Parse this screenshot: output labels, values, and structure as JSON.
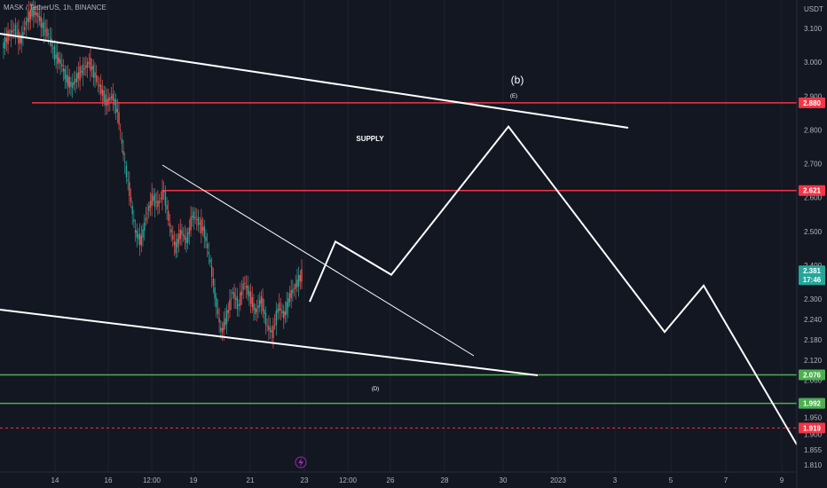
{
  "header": {
    "symbol_title": "MASK / TetherUS, 1h, BINANCE",
    "currency": "USDT"
  },
  "colors": {
    "background": "#131722",
    "candle_up": "#26a69a",
    "candle_down": "#ef5350",
    "resistance": "#f23645",
    "support": "#4caf50",
    "drawing": "#ffffff",
    "last_price": "#26a69a"
  },
  "annotations": {
    "wave_b": "(b)",
    "wave_e": "(E)",
    "wave_d": "(D)",
    "supply": "SUPPLY"
  },
  "chart_data": {
    "type": "candlestick",
    "ylim": [
      1.81,
      3.22
    ],
    "y_ticks": [
      "3.100",
      "3.000",
      "2.900",
      "2.800",
      "2.700",
      "2.600",
      "2.500",
      "2.400",
      "2.300",
      "2.240",
      "2.180",
      "2.120",
      "2.060",
      "2.000",
      "1.950",
      "1.900",
      "1.855",
      "1.810"
    ],
    "x_ticks": [
      "14",
      "16",
      "12:00",
      "19",
      "21",
      "23",
      "12:00",
      "26",
      "28",
      "30",
      "2023",
      "3",
      "5",
      "7",
      "9"
    ],
    "price_tags": [
      {
        "label": "2.880",
        "value": 2.88,
        "kind": "resistance"
      },
      {
        "label": "2.621",
        "value": 2.621,
        "kind": "resistance"
      },
      {
        "label": "2.381",
        "value": 2.381,
        "kind": "last",
        "sub": "17:46"
      },
      {
        "label": "2.076",
        "value": 2.076,
        "kind": "support"
      },
      {
        "label": "1.992",
        "value": 1.992,
        "kind": "support"
      },
      {
        "label": "1.919",
        "value": 1.919,
        "kind": "resistance"
      }
    ],
    "horizontal_levels": [
      2.88,
      2.621,
      2.076,
      1.992
    ],
    "dashed_level": 1.919,
    "projected_path": [
      2.292,
      2.47,
      2.372,
      2.81,
      2.203,
      2.34,
      1.87
    ],
    "price_path": [
      3.05,
      3.08,
      3.1,
      3.06,
      3.12,
      3.15,
      3.14,
      3.1,
      3.08,
      3.02,
      3.0,
      2.95,
      2.93,
      2.96,
      2.98,
      3.0,
      2.96,
      2.92,
      2.88,
      2.9,
      2.85,
      2.72,
      2.62,
      2.5,
      2.47,
      2.55,
      2.6,
      2.58,
      2.62,
      2.52,
      2.45,
      2.5,
      2.47,
      2.55,
      2.53,
      2.5,
      2.42,
      2.3,
      2.2,
      2.25,
      2.32,
      2.28,
      2.35,
      2.31,
      2.26,
      2.3,
      2.22,
      2.2,
      2.28,
      2.25,
      2.31,
      2.34,
      2.37
    ]
  }
}
